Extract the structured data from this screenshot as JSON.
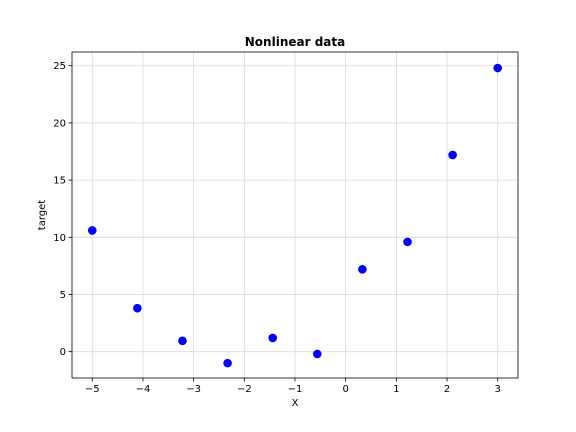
{
  "chart_data": {
    "type": "scatter",
    "title": "Nonlinear data",
    "xlabel": "X",
    "ylabel": "target",
    "xlim": [
      -5.4,
      3.4
    ],
    "ylim": [
      -2.3,
      26.2
    ],
    "xticks": [
      -5,
      -4,
      -3,
      -2,
      -1,
      0,
      1,
      2,
      3
    ],
    "xtick_labels": [
      "−5",
      "−4",
      "−3",
      "−2",
      "−1",
      "0",
      "1",
      "2",
      "3"
    ],
    "yticks": [
      0,
      5,
      10,
      15,
      20,
      25
    ],
    "ytick_labels": [
      "0",
      "5",
      "10",
      "15",
      "20",
      "25"
    ],
    "grid": true,
    "legend": "none",
    "series": [
      {
        "color": "#0000ff",
        "x": [
          -5.0,
          -4.11,
          -3.22,
          -2.33,
          -1.44,
          -0.56,
          0.33,
          1.22,
          2.11,
          3.0
        ],
        "y": [
          10.6,
          3.8,
          0.95,
          -1.0,
          1.2,
          -0.2,
          7.2,
          9.6,
          17.2,
          24.8
        ]
      }
    ]
  }
}
